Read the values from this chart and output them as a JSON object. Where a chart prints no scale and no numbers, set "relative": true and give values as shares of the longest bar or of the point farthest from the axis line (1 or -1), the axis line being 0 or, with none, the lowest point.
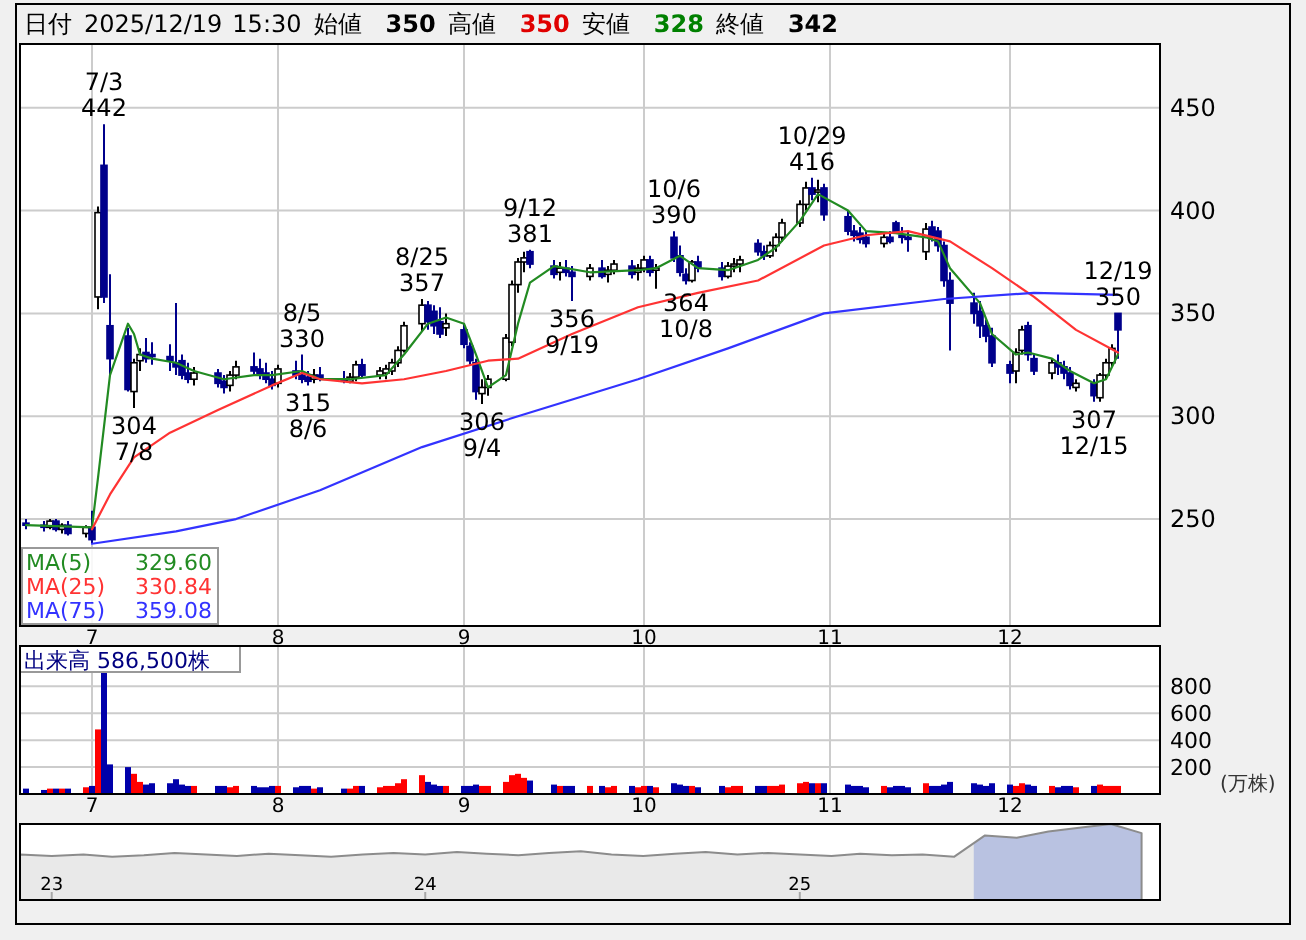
{
  "chart_data": [
    {
      "type": "candlestick",
      "title": "日付 2025/12/19 15:30 始値 350 高値 350 安値 328 終値 342",
      "x": [
        "2025-06-20",
        "2025-06-23",
        "2025-06-24",
        "2025-06-25",
        "2025-06-26",
        "2025-06-27",
        "2025-06-30",
        "2025-07-01",
        "2025-07-02",
        "2025-07-03",
        "2025-07-04",
        "2025-07-07",
        "2025-07-08",
        "2025-07-09",
        "2025-07-10",
        "2025-07-11",
        "2025-07-14",
        "2025-07-15",
        "2025-07-16",
        "2025-07-17",
        "2025-07-18",
        "2025-07-22",
        "2025-07-23",
        "2025-07-24",
        "2025-07-25",
        "2025-07-28",
        "2025-07-29",
        "2025-07-30",
        "2025-07-31",
        "2025-08-01",
        "2025-08-04",
        "2025-08-05",
        "2025-08-06",
        "2025-08-07",
        "2025-08-08",
        "2025-08-12",
        "2025-08-13",
        "2025-08-14",
        "2025-08-15",
        "2025-08-18",
        "2025-08-19",
        "2025-08-20",
        "2025-08-21",
        "2025-08-22",
        "2025-08-25",
        "2025-08-26",
        "2025-08-27",
        "2025-08-28",
        "2025-08-29",
        "2025-09-01",
        "2025-09-02",
        "2025-09-03",
        "2025-09-04",
        "2025-09-05",
        "2025-09-08",
        "2025-09-09",
        "2025-09-10",
        "2025-09-11",
        "2025-09-12",
        "2025-09-16",
        "2025-09-17",
        "2025-09-18",
        "2025-09-19",
        "2025-09-22",
        "2025-09-24",
        "2025-09-25",
        "2025-09-26",
        "2025-09-29",
        "2025-09-30",
        "2025-10-01",
        "2025-10-02",
        "2025-10-03",
        "2025-10-06",
        "2025-10-07",
        "2025-10-08",
        "2025-10-09",
        "2025-10-10",
        "2025-10-14",
        "2025-10-15",
        "2025-10-16",
        "2025-10-17",
        "2025-10-20",
        "2025-10-21",
        "2025-10-22",
        "2025-10-23",
        "2025-10-24",
        "2025-10-27",
        "2025-10-28",
        "2025-10-29",
        "2025-10-30",
        "2025-10-31",
        "2025-11-04",
        "2025-11-05",
        "2025-11-06",
        "2025-11-07",
        "2025-11-10",
        "2025-11-11",
        "2025-11-12",
        "2025-11-13",
        "2025-11-14",
        "2025-11-17",
        "2025-11-18",
        "2025-11-19",
        "2025-11-20",
        "2025-11-21",
        "2025-11-25",
        "2025-11-26",
        "2025-11-27",
        "2025-11-28",
        "2025-12-01",
        "2025-12-02",
        "2025-12-03",
        "2025-12-04",
        "2025-12-05",
        "2025-12-08",
        "2025-12-09",
        "2025-12-10",
        "2025-12-11",
        "2025-12-12",
        "2025-12-15",
        "2025-12-16",
        "2025-12-17",
        "2025-12-18",
        "2025-12-19"
      ],
      "ohlc": [
        [
          248,
          250,
          245,
          247
        ],
        [
          247,
          249,
          244,
          246
        ],
        [
          246,
          250,
          245,
          249
        ],
        [
          249,
          250,
          244,
          245
        ],
        [
          245,
          248,
          243,
          247
        ],
        [
          247,
          249,
          242,
          243
        ],
        [
          243,
          247,
          241,
          246
        ],
        [
          246,
          254,
          238,
          240
        ],
        [
          358,
          402,
          352,
          399
        ],
        [
          422,
          442,
          355,
          358
        ],
        [
          344,
          369,
          320,
          328
        ],
        [
          339,
          343,
          312,
          313
        ],
        [
          312,
          328,
          304,
          326
        ],
        [
          327,
          333,
          322,
          330
        ],
        [
          331,
          338,
          326,
          328
        ],
        [
          330,
          336,
          325,
          329
        ],
        [
          329,
          335,
          322,
          327
        ],
        [
          326,
          355,
          320,
          324
        ],
        [
          327,
          330,
          318,
          320
        ],
        [
          321,
          326,
          316,
          318
        ],
        [
          318,
          324,
          315,
          321
        ],
        [
          321,
          323,
          314,
          316
        ],
        [
          317,
          320,
          311,
          314
        ],
        [
          315,
          322,
          312,
          320
        ],
        [
          320,
          327,
          318,
          324
        ],
        [
          324,
          331,
          320,
          322
        ],
        [
          323,
          328,
          318,
          320
        ],
        [
          321,
          326,
          316,
          318
        ],
        [
          318,
          322,
          313,
          315
        ],
        [
          316,
          325,
          314,
          323
        ],
        [
          322,
          327,
          318,
          320
        ],
        [
          320,
          330,
          316,
          318
        ],
        [
          319,
          322,
          315,
          317
        ],
        [
          318,
          323,
          316,
          320
        ],
        [
          320,
          324,
          317,
          318
        ],
        [
          318,
          322,
          316,
          317
        ],
        [
          317,
          321,
          316,
          319
        ],
        [
          319,
          327,
          317,
          325
        ],
        [
          325,
          328,
          319,
          320
        ],
        [
          320,
          324,
          318,
          322
        ],
        [
          321,
          325,
          318,
          323
        ],
        [
          322,
          328,
          320,
          326
        ],
        [
          326,
          334,
          324,
          332
        ],
        [
          332,
          346,
          331,
          344
        ],
        [
          345,
          357,
          341,
          354
        ],
        [
          354,
          356,
          342,
          346
        ],
        [
          351,
          354,
          340,
          344
        ],
        [
          346,
          353,
          338,
          340
        ],
        [
          343,
          350,
          339,
          345
        ],
        [
          342,
          345,
          333,
          335
        ],
        [
          334,
          336,
          325,
          327
        ],
        [
          326,
          328,
          308,
          312
        ],
        [
          311,
          318,
          306,
          314
        ],
        [
          314,
          320,
          310,
          318
        ],
        [
          318,
          340,
          317,
          338
        ],
        [
          336,
          366,
          334,
          364
        ],
        [
          364,
          377,
          360,
          375
        ],
        [
          375,
          380,
          370,
          377
        ],
        [
          380,
          381,
          372,
          374
        ],
        [
          373,
          376,
          367,
          369
        ],
        [
          370,
          375,
          366,
          372
        ],
        [
          372,
          376,
          368,
          370
        ],
        [
          370,
          373,
          356,
          368
        ],
        [
          368,
          374,
          366,
          372
        ],
        [
          372,
          376,
          367,
          368
        ],
        [
          369,
          373,
          365,
          371
        ],
        [
          371,
          376,
          369,
          374
        ],
        [
          373,
          376,
          367,
          369
        ],
        [
          370,
          374,
          366,
          372
        ],
        [
          372,
          378,
          370,
          376
        ],
        [
          376,
          378,
          368,
          370
        ],
        [
          371,
          374,
          362,
          372
        ],
        [
          387,
          390,
          375,
          377
        ],
        [
          378,
          383,
          368,
          370
        ],
        [
          369,
          372,
          364,
          366
        ],
        [
          366,
          376,
          365,
          375
        ],
        [
          375,
          378,
          370,
          372
        ],
        [
          372,
          375,
          366,
          368
        ],
        [
          368,
          375,
          367,
          373
        ],
        [
          373,
          377,
          370,
          374
        ],
        [
          374,
          378,
          370,
          376
        ],
        [
          384,
          386,
          378,
          380
        ],
        [
          380,
          383,
          376,
          378
        ],
        [
          378,
          385,
          377,
          383
        ],
        [
          383,
          389,
          380,
          387
        ],
        [
          387,
          396,
          385,
          394
        ],
        [
          394,
          405,
          392,
          403
        ],
        [
          403,
          414,
          400,
          411
        ],
        [
          411,
          416,
          405,
          408
        ],
        [
          409,
          415,
          404,
          410
        ],
        [
          411,
          413,
          395,
          398
        ],
        [
          397,
          400,
          388,
          390
        ],
        [
          390,
          393,
          385,
          388
        ],
        [
          389,
          392,
          384,
          386
        ],
        [
          387,
          390,
          382,
          384
        ],
        [
          384,
          389,
          382,
          387
        ],
        [
          387,
          390,
          384,
          385
        ],
        [
          394,
          395,
          389,
          390
        ],
        [
          388,
          392,
          384,
          387
        ],
        [
          387,
          390,
          380,
          386
        ],
        [
          380,
          394,
          376,
          391
        ],
        [
          392,
          395,
          385,
          387
        ],
        [
          390,
          392,
          380,
          383
        ],
        [
          383,
          385,
          363,
          366
        ],
        [
          366,
          370,
          332,
          355
        ],
        [
          355,
          360,
          345,
          350
        ],
        [
          351,
          356,
          338,
          344
        ],
        [
          344,
          347,
          336,
          339
        ],
        [
          339,
          343,
          324,
          326
        ],
        [
          325,
          327,
          316,
          321
        ],
        [
          322,
          333,
          316,
          331
        ],
        [
          332,
          344,
          330,
          342
        ],
        [
          344,
          346,
          327,
          330
        ],
        [
          328,
          330,
          320,
          322
        ],
        [
          321,
          328,
          318,
          326
        ],
        [
          326,
          330,
          320,
          324
        ],
        [
          324,
          327,
          318,
          321
        ],
        [
          321,
          324,
          313,
          315
        ],
        [
          314,
          318,
          312,
          316
        ],
        [
          316,
          318,
          307,
          310
        ],
        [
          309,
          321,
          307,
          320
        ],
        [
          320,
          328,
          318,
          326
        ],
        [
          326,
          335,
          324,
          333
        ],
        [
          350,
          350,
          328,
          342
        ]
      ],
      "series": [
        {
          "type": "line",
          "name": "MA(5)",
          "color": "#228b22",
          "x": [
            "2025-06-20",
            "2025-07-01",
            "2025-07-02",
            "2025-07-03",
            "2025-07-04",
            "2025-07-07",
            "2025-07-08",
            "2025-07-09",
            "2025-07-11",
            "2025-07-15",
            "2025-07-18",
            "2025-07-23",
            "2025-07-28",
            "2025-07-31",
            "2025-08-05",
            "2025-08-08",
            "2025-08-13",
            "2025-08-19",
            "2025-08-22",
            "2025-08-26",
            "2025-08-29",
            "2025-09-01",
            "2025-09-03",
            "2025-09-05",
            "2025-09-08",
            "2025-09-10",
            "2025-09-12",
            "2025-09-16",
            "2025-09-22",
            "2025-09-30",
            "2025-10-03",
            "2025-10-07",
            "2025-10-10",
            "2025-10-15",
            "2025-10-20",
            "2025-10-23",
            "2025-10-27",
            "2025-10-30",
            "2025-11-04",
            "2025-11-07",
            "2025-11-12",
            "2025-11-17",
            "2025-11-19",
            "2025-11-21",
            "2025-11-26",
            "2025-11-28",
            "2025-12-02",
            "2025-12-04",
            "2025-12-08",
            "2025-12-11",
            "2025-12-15",
            "2025-12-17",
            "2025-12-19"
          ],
          "values": [
            247,
            246,
            270,
            295,
            320,
            345,
            340,
            330,
            328,
            326,
            322,
            318,
            320,
            320,
            322,
            318,
            318,
            320,
            330,
            345,
            348,
            345,
            330,
            314,
            320,
            345,
            365,
            373,
            370,
            371,
            372,
            378,
            372,
            371,
            376,
            382,
            395,
            408,
            400,
            390,
            389,
            387,
            385,
            372,
            355,
            340,
            330,
            331,
            328,
            322,
            316,
            318,
            330
          ]
        },
        {
          "type": "line",
          "name": "MA(25)",
          "color": "#ff3333",
          "x": [
            "2025-07-01",
            "2025-07-04",
            "2025-07-08",
            "2025-07-14",
            "2025-07-22",
            "2025-07-31",
            "2025-08-05",
            "2025-08-08",
            "2025-08-15",
            "2025-08-22",
            "2025-08-29",
            "2025-09-05",
            "2025-09-10",
            "2025-09-19",
            "2025-09-30",
            "2025-10-10",
            "2025-10-20",
            "2025-10-31",
            "2025-11-07",
            "2025-11-14",
            "2025-11-21",
            "2025-11-28",
            "2025-12-05",
            "2025-12-12",
            "2025-12-19"
          ],
          "values": [
            245,
            262,
            280,
            292,
            303,
            315,
            321,
            318,
            316,
            318,
            322,
            327,
            328,
            340,
            353,
            360,
            366,
            383,
            388,
            390,
            385,
            372,
            358,
            342,
            331
          ]
        },
        {
          "type": "line",
          "name": "MA(75)",
          "color": "#3333ff",
          "x": [
            "2025-07-01",
            "2025-07-15",
            "2025-07-25",
            "2025-08-08",
            "2025-08-25",
            "2025-09-10",
            "2025-09-30",
            "2025-10-15",
            "2025-10-31",
            "2025-11-20",
            "2025-12-05",
            "2025-12-19"
          ],
          "values": [
            238,
            244,
            250,
            264,
            285,
            300,
            318,
            333,
            350,
            357,
            360,
            359
          ]
        }
      ],
      "annotations": [
        {
          "text": "7/3\n442",
          "x": "2025-07-03",
          "y": 442
        },
        {
          "text": "304\n7/8",
          "x": "2025-07-08",
          "y": 304
        },
        {
          "text": "8/5\n330",
          "x": "2025-08-05",
          "y": 330
        },
        {
          "text": "315\n8/6",
          "x": "2025-08-06",
          "y": 315
        },
        {
          "text": "8/25\n357",
          "x": "2025-08-25",
          "y": 357
        },
        {
          "text": "306\n9/4",
          "x": "2025-09-04",
          "y": 306
        },
        {
          "text": "9/12\n381",
          "x": "2025-09-12",
          "y": 381
        },
        {
          "text": "356\n9/19",
          "x": "2025-09-19",
          "y": 356
        },
        {
          "text": "10/6\n390",
          "x": "2025-10-06",
          "y": 390
        },
        {
          "text": "364\n10/8",
          "x": "2025-10-08",
          "y": 364
        },
        {
          "text": "10/29\n416",
          "x": "2025-10-29",
          "y": 416
        },
        {
          "text": "307\n12/15",
          "x": "2025-12-15",
          "y": 307
        },
        {
          "text": "12/19\n350",
          "x": "2025-12-19",
          "y": 350
        },
        "329.60",
        "330.84",
        "359.08"
      ],
      "xlim": [
        "2025-06-19",
        "2025-12-26"
      ],
      "xticks": [
        {
          "value": "2025-07-01",
          "label": "7"
        },
        {
          "value": "2025-08-01",
          "label": "8"
        },
        {
          "value": "2025-09-01",
          "label": "9"
        },
        {
          "value": "2025-10-01",
          "label": "10"
        },
        {
          "value": "2025-11-01",
          "label": "11"
        },
        {
          "value": "2025-12-01",
          "label": "12"
        }
      ],
      "ylim": [
        198,
        481
      ],
      "yticks": [
        250,
        300,
        350,
        400,
        450
      ],
      "grid": true,
      "legend": "bottom left"
    },
    {
      "type": "bar",
      "title": "出来高 586,500株",
      "ylabel": "(万株)",
      "x": [
        "2025-06-20",
        "2025-06-23",
        "2025-06-24",
        "2025-06-25",
        "2025-06-26",
        "2025-06-27",
        "2025-06-30",
        "2025-07-01",
        "2025-07-02",
        "2025-07-03",
        "2025-07-04",
        "2025-07-07",
        "2025-07-08",
        "2025-07-09",
        "2025-07-10",
        "2025-07-11",
        "2025-07-14",
        "2025-07-15",
        "2025-07-16",
        "2025-07-17",
        "2025-07-18",
        "2025-07-22",
        "2025-07-23",
        "2025-07-24",
        "2025-07-25",
        "2025-07-28",
        "2025-07-29",
        "2025-07-30",
        "2025-07-31",
        "2025-08-01",
        "2025-08-04",
        "2025-08-05",
        "2025-08-06",
        "2025-08-07",
        "2025-08-08",
        "2025-08-12",
        "2025-08-13",
        "2025-08-14",
        "2025-08-15",
        "2025-08-18",
        "2025-08-19",
        "2025-08-20",
        "2025-08-21",
        "2025-08-22",
        "2025-08-25",
        "2025-08-26",
        "2025-08-27",
        "2025-08-28",
        "2025-08-29",
        "2025-09-01",
        "2025-09-02",
        "2025-09-03",
        "2025-09-04",
        "2025-09-05",
        "2025-09-08",
        "2025-09-09",
        "2025-09-10",
        "2025-09-11",
        "2025-09-12",
        "2025-09-16",
        "2025-09-17",
        "2025-09-18",
        "2025-09-19",
        "2025-09-22",
        "2025-09-24",
        "2025-09-25",
        "2025-09-26",
        "2025-09-29",
        "2025-09-30",
        "2025-10-01",
        "2025-10-02",
        "2025-10-03",
        "2025-10-06",
        "2025-10-07",
        "2025-10-08",
        "2025-10-09",
        "2025-10-10",
        "2025-10-14",
        "2025-10-15",
        "2025-10-16",
        "2025-10-17",
        "2025-10-20",
        "2025-10-21",
        "2025-10-22",
        "2025-10-23",
        "2025-10-24",
        "2025-10-27",
        "2025-10-28",
        "2025-10-29",
        "2025-10-30",
        "2025-10-31",
        "2025-11-04",
        "2025-11-05",
        "2025-11-06",
        "2025-11-07",
        "2025-11-10",
        "2025-11-11",
        "2025-11-12",
        "2025-11-13",
        "2025-11-14",
        "2025-11-17",
        "2025-11-18",
        "2025-11-19",
        "2025-11-20",
        "2025-11-21",
        "2025-11-25",
        "2025-11-26",
        "2025-11-27",
        "2025-11-28",
        "2025-12-01",
        "2025-12-02",
        "2025-12-03",
        "2025-12-04",
        "2025-12-05",
        "2025-12-08",
        "2025-12-09",
        "2025-12-10",
        "2025-12-11",
        "2025-12-12",
        "2025-12-15",
        "2025-12-16",
        "2025-12-17",
        "2025-12-18",
        "2025-12-19"
      ],
      "values": [
        40,
        30,
        40,
        40,
        40,
        40,
        50,
        60,
        480,
        900,
        220,
        200,
        150,
        90,
        70,
        80,
        80,
        110,
        70,
        60,
        60,
        60,
        60,
        50,
        60,
        60,
        50,
        50,
        60,
        60,
        50,
        60,
        60,
        40,
        50,
        40,
        40,
        60,
        60,
        50,
        60,
        60,
        80,
        110,
        140,
        90,
        70,
        60,
        60,
        60,
        60,
        70,
        60,
        60,
        90,
        140,
        150,
        120,
        100,
        70,
        60,
        60,
        60,
        60,
        60,
        50,
        60,
        60,
        50,
        60,
        60,
        50,
        80,
        70,
        60,
        60,
        50,
        60,
        50,
        60,
        60,
        60,
        60,
        60,
        60,
        70,
        80,
        90,
        80,
        80,
        80,
        70,
        60,
        60,
        50,
        60,
        50,
        60,
        60,
        50,
        80,
        60,
        60,
        70,
        90,
        80,
        70,
        60,
        80,
        70,
        60,
        80,
        70,
        60,
        60,
        50,
        60,
        60,
        50,
        60,
        70,
        60,
        60,
        60
      ],
      "colors": [
        "#0000aa",
        "#0000aa",
        "#ff0000",
        "#0000aa",
        "#ff0000",
        "#0000aa",
        "#ff0000",
        "#0000aa",
        "#ff0000",
        "#0000aa",
        "#0000aa",
        "#0000aa",
        "#ff0000",
        "#ff0000",
        "#0000aa",
        "#0000aa",
        "#0000aa",
        "#0000aa",
        "#0000aa",
        "#0000aa",
        "#ff0000",
        "#0000aa",
        "#0000aa",
        "#ff0000",
        "#ff0000",
        "#0000aa",
        "#0000aa",
        "#0000aa",
        "#0000aa",
        "#ff0000",
        "#0000aa",
        "#0000aa",
        "#0000aa",
        "#ff0000",
        "#0000aa",
        "#0000aa",
        "#ff0000",
        "#ff0000",
        "#0000aa",
        "#ff0000",
        "#ff0000",
        "#ff0000",
        "#ff0000",
        "#ff0000",
        "#ff0000",
        "#0000aa",
        "#0000aa",
        "#0000aa",
        "#ff0000",
        "#0000aa",
        "#0000aa",
        "#0000aa",
        "#ff0000",
        "#ff0000",
        "#ff0000",
        "#ff0000",
        "#ff0000",
        "#ff0000",
        "#0000aa",
        "#0000aa",
        "#ff0000",
        "#0000aa",
        "#0000aa",
        "#ff0000",
        "#0000aa",
        "#ff0000",
        "#ff0000",
        "#0000aa",
        "#ff0000",
        "#ff0000",
        "#0000aa",
        "#ff0000",
        "#0000aa",
        "#0000aa",
        "#0000aa",
        "#ff0000",
        "#0000aa",
        "#0000aa",
        "#ff0000",
        "#ff0000",
        "#ff0000",
        "#0000aa",
        "#0000aa",
        "#ff0000",
        "#ff0000",
        "#ff0000",
        "#ff0000",
        "#ff0000",
        "#0000aa",
        "#ff0000",
        "#0000aa",
        "#0000aa",
        "#0000aa",
        "#0000aa",
        "#0000aa",
        "#ff0000",
        "#0000aa",
        "#0000aa",
        "#0000aa",
        "#0000aa",
        "#ff0000",
        "#0000aa",
        "#0000aa",
        "#0000aa",
        "#0000aa",
        "#0000aa",
        "#0000aa",
        "#0000aa",
        "#0000aa",
        "#0000aa",
        "#ff0000",
        "#ff0000",
        "#0000aa",
        "#0000aa",
        "#ff0000",
        "#0000aa",
        "#0000aa",
        "#0000aa",
        "#ff0000",
        "#0000aa",
        "#ff0000",
        "#ff0000",
        "#ff0000",
        "#ff0000"
      ],
      "xlim": [
        "2025-06-19",
        "2025-12-26"
      ],
      "xticks": [
        {
          "value": "2025-07-01",
          "label": "7"
        },
        {
          "value": "2025-08-01",
          "label": "8"
        },
        {
          "value": "2025-09-01",
          "label": "9"
        },
        {
          "value": "2025-10-01",
          "label": "10"
        },
        {
          "value": "2025-11-01",
          "label": "11"
        },
        {
          "value": "2025-12-01",
          "label": "12"
        }
      ],
      "ylim": [
        0,
        1100
      ],
      "yticks": [
        200,
        400,
        600,
        800
      ],
      "grid": true
    },
    {
      "type": "area",
      "relative": true,
      "color": "#8c8c8c",
      "x": [
        "2022-12",
        "2023-01",
        "2023-02",
        "2023-03",
        "2023-04",
        "2023-05",
        "2023-06",
        "2023-07",
        "2023-08",
        "2023-09",
        "2023-10",
        "2023-11",
        "2023-12",
        "2024-01",
        "2024-02",
        "2024-03",
        "2024-04",
        "2024-05",
        "2024-06",
        "2024-07",
        "2024-08",
        "2024-09",
        "2024-10",
        "2024-11",
        "2024-12",
        "2025-01",
        "2025-02",
        "2025-03",
        "2025-04",
        "2025-05",
        "2025-06",
        "2025-07",
        "2025-08",
        "2025-09",
        "2025-10",
        "2025-11",
        "2025-12"
      ],
      "values": [
        0.6,
        0.58,
        0.6,
        0.57,
        0.59,
        0.62,
        0.6,
        0.58,
        0.61,
        0.59,
        0.57,
        0.6,
        0.62,
        0.6,
        0.63,
        0.61,
        0.59,
        0.62,
        0.64,
        0.6,
        0.58,
        0.61,
        0.63,
        0.6,
        0.62,
        0.6,
        0.58,
        0.61,
        0.59,
        0.6,
        0.57,
        0.85,
        0.82,
        0.9,
        0.95,
        1,
        0.88
      ],
      "bands": [
        {
          "axis": "x",
          "from": "2025-06-20",
          "to": "2025-12-19",
          "color": "#a8b8f0"
        }
      ],
      "xlim": [
        "2022-12-01",
        "2025-12-19"
      ],
      "xticks": [
        {
          "value": "2023-01-01",
          "label": "23"
        },
        {
          "value": "2024-01-01",
          "label": "24"
        },
        {
          "value": "2025-01-01",
          "label": "25"
        }
      ]
    }
  ]
}
